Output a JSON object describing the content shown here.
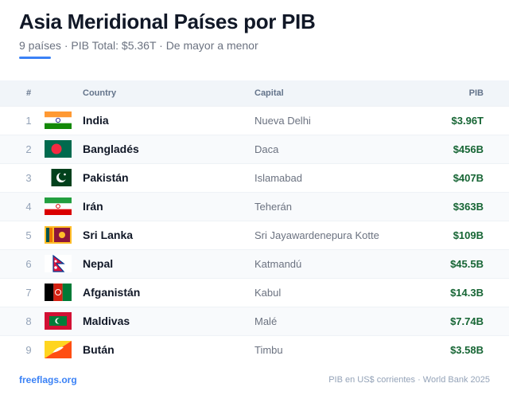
{
  "header": {
    "title": "Asia Meridional Países por PIB",
    "subtitle": "9 países · PIB Total: $5.36T · De mayor a menor"
  },
  "table": {
    "columns": [
      "#",
      "Country",
      "Capital",
      "PIB"
    ],
    "rows": [
      [
        1,
        "India",
        "Nueva Delhi",
        "$3.96T"
      ],
      [
        2,
        "Bangladés",
        "Daca",
        "$456B"
      ],
      [
        3,
        "Pakistán",
        "Islamabad",
        "$407B"
      ],
      [
        4,
        "Irán",
        "Teherán",
        "$363B"
      ],
      [
        5,
        "Sri Lanka",
        "Sri Jayawardenepura Kotte",
        "$109B"
      ],
      [
        6,
        "Nepal",
        "Katmandú",
        "$45.5B"
      ],
      [
        7,
        "Afganistán",
        "Kabul",
        "$14.3B"
      ],
      [
        8,
        "Maldivas",
        "Malé",
        "$7.74B"
      ],
      [
        9,
        "Bután",
        "Timbu",
        "$3.58B"
      ]
    ]
  },
  "footer": {
    "source_site": "freeflags.org",
    "note": "PIB en US$ corrientes · World Bank 2025"
  }
}
